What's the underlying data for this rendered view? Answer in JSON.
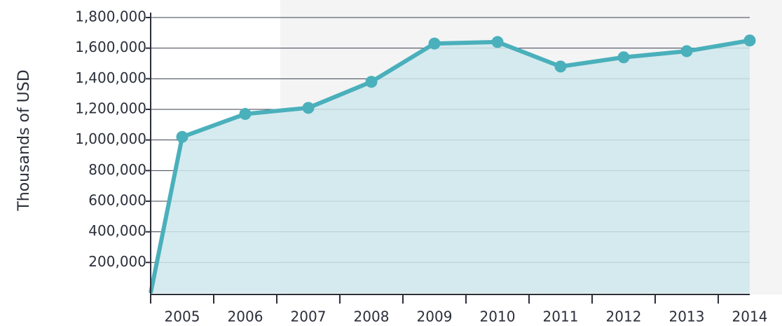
{
  "chart_data": {
    "type": "line",
    "y_label": "Thousands of USD",
    "categories": [
      null,
      "2005",
      "2006",
      "2007",
      "2008",
      "2009",
      "2010",
      "2011",
      "2012",
      "2013",
      "2014"
    ],
    "values": [
      0,
      1020000,
      1170000,
      1210000,
      1380000,
      1630000,
      1640000,
      1480000,
      1540000,
      1580000,
      1650000
    ],
    "color": "#4ab0bb",
    "area_color": "#cfe8ec",
    "ylim": [
      0,
      1800000
    ],
    "yticks": [
      {
        "value": 200000,
        "label": "200,000"
      },
      {
        "value": 400000,
        "label": "400,000"
      },
      {
        "value": 600000,
        "label": "600,000"
      },
      {
        "value": 800000,
        "label": "800,000"
      },
      {
        "value": 1000000,
        "label": "1,000,000"
      },
      {
        "value": 1200000,
        "label": "1,200,000"
      },
      {
        "value": 1400000,
        "label": "1,400,000"
      },
      {
        "value": 1600000,
        "label": "1,600,000"
      },
      {
        "value": 1800000,
        "label": "1,800,000"
      }
    ],
    "grid": true
  }
}
